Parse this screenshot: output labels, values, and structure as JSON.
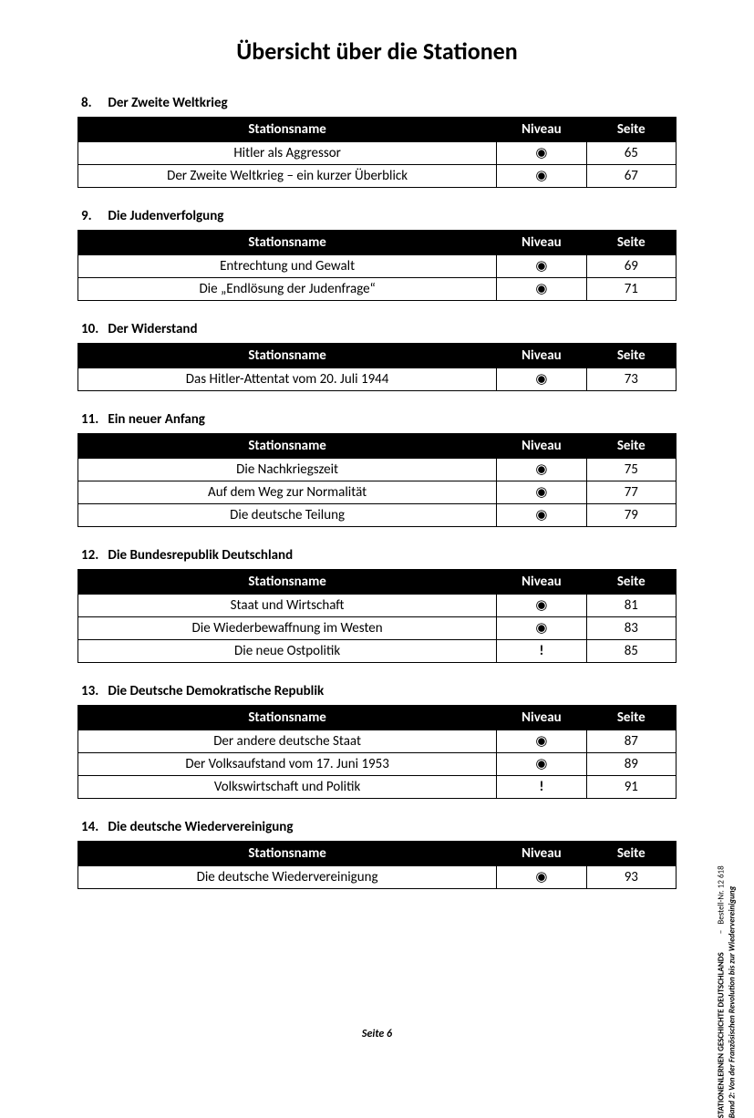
{
  "title": "Übersicht über die Stationen",
  "columns": {
    "name": "Stationsname",
    "niveau": "Niveau",
    "seite": "Seite"
  },
  "niveau_dot": "◉",
  "niveau_excl": "!",
  "sections": [
    {
      "num": "8.",
      "heading": "Der Zweite Weltkrieg",
      "rows": [
        {
          "name": "Hitler als Aggressor",
          "niveau": "dot",
          "seite": "65"
        },
        {
          "name": "Der Zweite Weltkrieg – ein kurzer Überblick",
          "niveau": "dot",
          "seite": "67"
        }
      ]
    },
    {
      "num": "9.",
      "heading": "Die Judenverfolgung",
      "rows": [
        {
          "name": "Entrechtung und Gewalt",
          "niveau": "dot",
          "seite": "69"
        },
        {
          "name": "Die „Endlösung der Judenfrage“",
          "niveau": "dot",
          "seite": "71"
        }
      ]
    },
    {
      "num": "10.",
      "heading": "Der Widerstand",
      "rows": [
        {
          "name": "Das Hitler-Attentat vom 20. Juli 1944",
          "niveau": "dot",
          "seite": "73"
        }
      ]
    },
    {
      "num": "11.",
      "heading": "Ein neuer Anfang",
      "rows": [
        {
          "name": "Die Nachkriegszeit",
          "niveau": "dot",
          "seite": "75"
        },
        {
          "name": "Auf dem Weg zur Normalität",
          "niveau": "dot",
          "seite": "77"
        },
        {
          "name": "Die deutsche Teilung",
          "niveau": "dot",
          "seite": "79"
        }
      ]
    },
    {
      "num": "12.",
      "heading": "Die Bundesrepublik Deutschland",
      "rows": [
        {
          "name": "Staat und Wirtschaft",
          "niveau": "dot",
          "seite": "81"
        },
        {
          "name": "Die Wiederbewaffnung im Westen",
          "niveau": "dot",
          "seite": "83"
        },
        {
          "name": "Die neue Ostpolitik",
          "niveau": "excl",
          "seite": "85"
        }
      ]
    },
    {
      "num": "13.",
      "heading": "Die Deutsche Demokratische Republik",
      "rows": [
        {
          "name": "Der andere deutsche Staat",
          "niveau": "dot",
          "seite": "87"
        },
        {
          "name": "Der Volksaufstand vom 17. Juni 1953",
          "niveau": "dot",
          "seite": "89"
        },
        {
          "name": "Volkswirtschaft und Politik",
          "niveau": "excl",
          "seite": "91"
        }
      ]
    },
    {
      "num": "14.",
      "heading": "Die deutsche Wiedervereinigung",
      "rows": [
        {
          "name": "Die deutsche Wiedervereinigung",
          "niveau": "dot",
          "seite": "93"
        }
      ]
    }
  ],
  "footer": "Seite 6",
  "side": {
    "line1": "STATIONENLERNEN GESCHICHTE DEUTSCHLANDS",
    "line2": "Band 2: Von der Französischen Revolution bis zur Wiedervereinigung",
    "order": "Bestell-Nr. 12 618"
  }
}
